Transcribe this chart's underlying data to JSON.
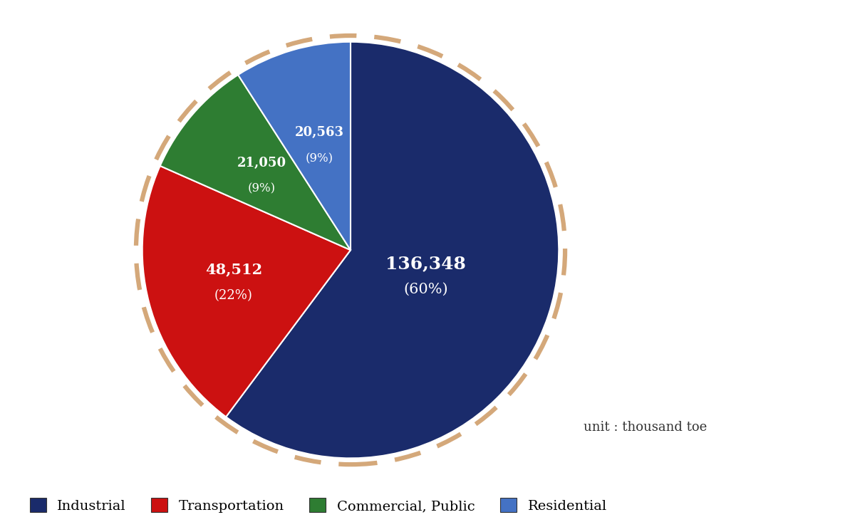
{
  "labels": [
    "Industrial",
    "Transportation",
    "Commercial, Public",
    "Residential"
  ],
  "values": [
    136348,
    48512,
    21050,
    20563
  ],
  "percentages": [
    60,
    22,
    9,
    9
  ],
  "display_values": [
    "136,348",
    "48,512",
    "21,050",
    "20,563"
  ],
  "colors": [
    "#1a2b6b",
    "#cc1111",
    "#2e7d32",
    "#4472c4"
  ],
  "dashed_border_color": "#d4a87a",
  "background_color": "#ffffff",
  "unit_text": "unit : thousand toe",
  "startangle": 90,
  "label_radii": [
    0.38,
    0.58,
    0.56,
    0.53
  ],
  "label_fontsizes_main": [
    18,
    15,
    13,
    13
  ],
  "label_fontsizes_pct": [
    15,
    13,
    12,
    12
  ]
}
